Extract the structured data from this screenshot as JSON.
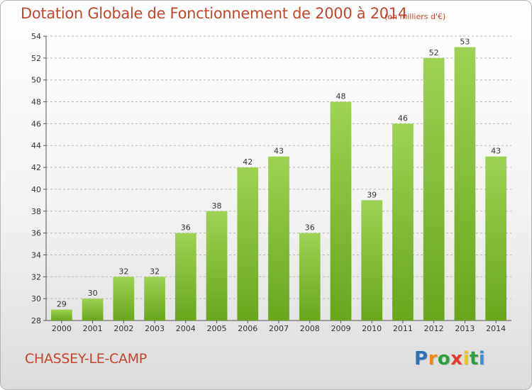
{
  "header": {
    "title": "Dotation Globale de Fonctionnement de 2000 à 2014",
    "unit": "(en milliers d'€)"
  },
  "footer": {
    "commune": "CHASSEY-LE-CAMP",
    "logo_letters": [
      {
        "char": "P",
        "color": "#2e6fb5"
      },
      {
        "char": "r",
        "color": "#f08a1d"
      },
      {
        "char": "o",
        "color": "#2e9e3e"
      },
      {
        "char": "x",
        "color": "#e53b2c"
      },
      {
        "char": "i",
        "color": "#f0c419"
      },
      {
        "char": "t",
        "color": "#2e9e3e"
      },
      {
        "char": "i",
        "color": "#3a8fd6"
      }
    ]
  },
  "chart_data": {
    "type": "bar",
    "title": "Dotation Globale de Fonctionnement de 2000 à 2014",
    "subtitle": "(en milliers d'€)",
    "xlabel": "",
    "ylabel": "",
    "categories": [
      "2000",
      "2001",
      "2002",
      "2003",
      "2004",
      "2005",
      "2006",
      "2007",
      "2008",
      "2009",
      "2010",
      "2011",
      "2012",
      "2013",
      "2014"
    ],
    "values": [
      29,
      30,
      32,
      32,
      36,
      38,
      42,
      43,
      36,
      48,
      39,
      46,
      52,
      53,
      43
    ],
    "ylim": [
      28,
      54
    ],
    "yticks": [
      28,
      30,
      32,
      34,
      36,
      38,
      40,
      42,
      44,
      46,
      48,
      50,
      52,
      54
    ],
    "grid": "horizontal dashed",
    "bar_color": "#8cc63f",
    "legend": "none"
  }
}
